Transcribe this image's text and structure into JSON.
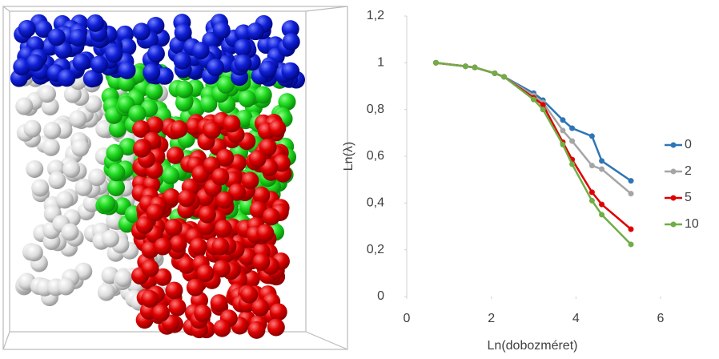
{
  "chart_data": {
    "type": "line",
    "x_label": "Ln(dobozméret)",
    "y_label": "Ln(λ)",
    "x": [
      0.69,
      1.39,
      1.61,
      2.08,
      2.3,
      3.0,
      3.22,
      3.69,
      3.91,
      4.38,
      4.61,
      5.3
    ],
    "series": [
      {
        "name": "0",
        "color": "#2e75b6",
        "values": [
          1,
          0.985,
          0.98,
          0.955,
          0.94,
          0.87,
          0.84,
          0.755,
          0.72,
          0.686,
          0.58,
          0.495
        ]
      },
      {
        "name": "2",
        "color": "#a5a5a5",
        "values": [
          1,
          0.985,
          0.98,
          0.955,
          0.94,
          0.86,
          0.83,
          0.71,
          0.665,
          0.56,
          0.545,
          0.44
        ]
      },
      {
        "name": "5",
        "color": "#e00000",
        "values": [
          1,
          0.985,
          0.98,
          0.955,
          0.94,
          0.85,
          0.82,
          0.66,
          0.586,
          0.446,
          0.394,
          0.288
        ]
      },
      {
        "name": "10",
        "color": "#70ad47",
        "values": [
          1,
          0.985,
          0.98,
          0.955,
          0.94,
          0.843,
          0.8,
          0.65,
          0.566,
          0.41,
          0.35,
          0.223
        ]
      }
    ],
    "xlim": [
      0,
      6
    ],
    "xticks": [
      0,
      2,
      4,
      6
    ],
    "ylim": [
      0,
      1.2
    ],
    "yticks": [
      0,
      {
        "value": 0.2,
        "label": "0,2"
      },
      {
        "value": 0.4,
        "label": "0,4"
      },
      {
        "value": 0.6,
        "label": "0,6"
      },
      {
        "value": 0.8,
        "label": "0,8"
      },
      1,
      {
        "value": 1.2,
        "label": "1,2"
      }
    ],
    "legend": "right"
  }
}
